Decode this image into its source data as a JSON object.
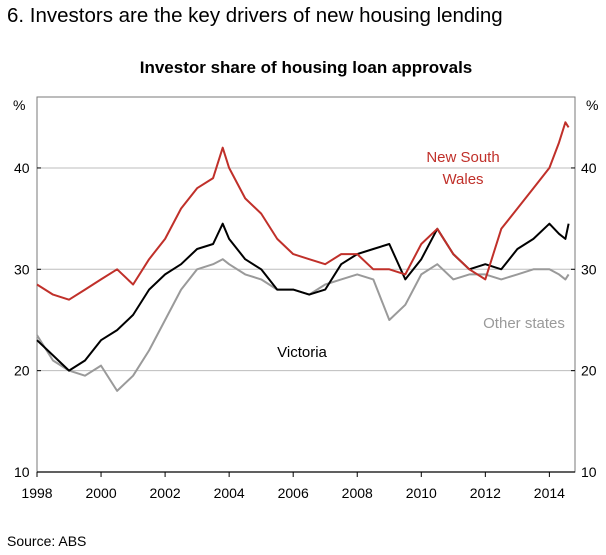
{
  "heading": "6. Investors are the key drivers of new housing lending",
  "source": "Source: ABS",
  "colors": {
    "nsw": "#c0302a",
    "vic": "#000000",
    "other": "#9a9a9a",
    "grid": "#bdbdbd",
    "axis": "#000000"
  },
  "chart_data": {
    "type": "line",
    "title": "Investor share of housing loan approvals",
    "ylabel_left": "%",
    "ylabel_right": "%",
    "ylim": [
      10,
      47
    ],
    "xlim": [
      1998,
      2014.8
    ],
    "y_ticks": [
      10,
      20,
      30,
      40
    ],
    "x_ticks": [
      "1998",
      "2000",
      "2002",
      "2004",
      "2006",
      "2008",
      "2010",
      "2012",
      "2014"
    ],
    "grid": "horizontal",
    "series": [
      {
        "name": "New South Wales",
        "color_key": "nsw",
        "x": [
          1998.0,
          1998.5,
          1999.0,
          1999.5,
          2000.0,
          2000.5,
          2001.0,
          2001.5,
          2002.0,
          2002.5,
          2003.0,
          2003.5,
          2003.8,
          2004.0,
          2004.5,
          2005.0,
          2005.5,
          2006.0,
          2006.5,
          2007.0,
          2007.5,
          2008.0,
          2008.5,
          2009.0,
          2009.5,
          2010.0,
          2010.5,
          2011.0,
          2011.5,
          2012.0,
          2012.5,
          2013.0,
          2013.5,
          2014.0,
          2014.3,
          2014.5,
          2014.6
        ],
        "values": [
          28.5,
          27.5,
          27.0,
          28.0,
          29.0,
          30.0,
          28.5,
          31.0,
          33.0,
          36.0,
          38.0,
          39.0,
          42.0,
          40.0,
          37.0,
          35.5,
          33.0,
          31.5,
          31.0,
          30.5,
          31.5,
          31.5,
          30.0,
          30.0,
          29.5,
          32.5,
          34.0,
          31.5,
          30.0,
          29.0,
          34.0,
          36.0,
          38.0,
          40.0,
          42.5,
          44.5,
          44.0
        ]
      },
      {
        "name": "Victoria",
        "color_key": "vic",
        "x": [
          1998.0,
          1998.5,
          1999.0,
          1999.5,
          2000.0,
          2000.5,
          2001.0,
          2001.5,
          2002.0,
          2002.5,
          2003.0,
          2003.5,
          2003.8,
          2004.0,
          2004.5,
          2005.0,
          2005.5,
          2006.0,
          2006.5,
          2007.0,
          2007.5,
          2008.0,
          2008.5,
          2009.0,
          2009.5,
          2010.0,
          2010.5,
          2011.0,
          2011.5,
          2012.0,
          2012.5,
          2013.0,
          2013.5,
          2014.0,
          2014.3,
          2014.5,
          2014.6
        ],
        "values": [
          23.0,
          21.5,
          20.0,
          21.0,
          23.0,
          24.0,
          25.5,
          28.0,
          29.5,
          30.5,
          32.0,
          32.5,
          34.5,
          33.0,
          31.0,
          30.0,
          28.0,
          28.0,
          27.5,
          28.0,
          30.5,
          31.5,
          32.0,
          32.5,
          29.0,
          31.0,
          34.0,
          31.5,
          30.0,
          30.5,
          30.0,
          32.0,
          33.0,
          34.5,
          33.5,
          33.0,
          34.5
        ]
      },
      {
        "name": "Other states",
        "color_key": "other",
        "x": [
          1998.0,
          1998.5,
          1999.0,
          1999.5,
          2000.0,
          2000.5,
          2001.0,
          2001.5,
          2002.0,
          2002.5,
          2003.0,
          2003.5,
          2003.8,
          2004.0,
          2004.5,
          2005.0,
          2005.5,
          2006.0,
          2006.5,
          2007.0,
          2007.5,
          2008.0,
          2008.5,
          2009.0,
          2009.5,
          2010.0,
          2010.5,
          2011.0,
          2011.5,
          2012.0,
          2012.5,
          2013.0,
          2013.5,
          2014.0,
          2014.3,
          2014.5,
          2014.6
        ],
        "values": [
          23.5,
          21.0,
          20.0,
          19.5,
          20.5,
          18.0,
          19.5,
          22.0,
          25.0,
          28.0,
          30.0,
          30.5,
          31.0,
          30.5,
          29.5,
          29.0,
          28.0,
          28.0,
          27.5,
          28.5,
          29.0,
          29.5,
          29.0,
          25.0,
          26.5,
          29.5,
          30.5,
          29.0,
          29.5,
          29.5,
          29.0,
          29.5,
          30.0,
          30.0,
          29.5,
          29.0,
          29.5
        ]
      }
    ],
    "labels": {
      "nsw_line1": "New South",
      "nsw_line2": "Wales",
      "vic": "Victoria",
      "other": "Other states"
    }
  }
}
